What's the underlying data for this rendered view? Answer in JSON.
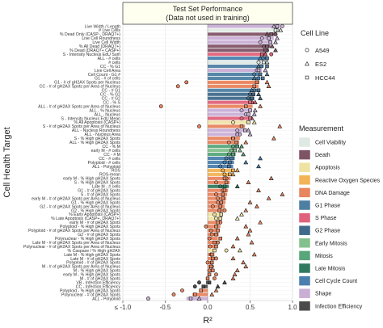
{
  "chart_data": {
    "type": "bar",
    "title": "Test Set Performance",
    "subtitle": "(Data not used in training)",
    "xlabel": "R²",
    "ylabel": "Cell Health Target",
    "xlim": [
      -1.0,
      1.0
    ],
    "xticks": [
      -1.0,
      -0.5,
      0.0,
      0.5,
      1.0
    ],
    "xtick_labels": [
      "≤ -1.0",
      "-0.5",
      "0.0",
      "0.5",
      "1.0"
    ],
    "grid": true,
    "legend_position": "right",
    "categories": [
      "Live Width / Length",
      "# Live Cells",
      "% Dead Only (CASP-, DRAQ7+)",
      "Live Cell Roundness",
      "Live Cell Width",
      "% All Dead (DRAQ7+)",
      "% Dead (DRAQ7+ CASP+)",
      "S - Intensity Nucleus EdU Sum",
      "ALL - # cells",
      "# cells",
      "CC - % G1",
      "Live Cell Area",
      "Cell Count - G1 #",
      "G1 - # of cells",
      "G1 - # of gH2AX Spots per Nucleus",
      "CC - # of gH2AX Spots per Area of Nucleus",
      "CC - # G1",
      "CC - % G2",
      "CC - # G2",
      "CC - % S",
      "ALL - # of gH2AX Spots per Area of Nucleus",
      "ALL - % Nucleus",
      "ALL - Nucleus",
      "S - Intensity Nucleus EdU Mean",
      "% All Apoptosis (CASP+)",
      "S - # of gH2AX Spots per Area of Nucleus",
      "ALL - Nucleus Roundness",
      "ALL - Nucleus Area",
      "S - % High gH2AX Spots",
      "ALL - % High gH2AX Spots",
      "CC - % M",
      "early M - # cells",
      "CC - # M",
      "CC - # cells",
      "Polyploid - # cells",
      "ALL - Polyploid",
      "ROS",
      "ROS-mean",
      "early M - % High gH2AX Spots",
      "S - % High gH2AX Spots",
      "Late M - # cells",
      "G1 - # of gH2AX Spots",
      "S - # of gH2AX Spots",
      "early M - # of gH2AX Spots per Area of Nucleus",
      "G1 - % High gH2AX Spots",
      "G2 - # of gH2AX Spots per Area of Nucleus",
      "G2 - % High gH2AX Spots",
      "% Early Apoptosis (CASP+)",
      "% Late Apoptosis (CASP+, DRAQ7+)",
      "early M - # of gH2AX Spots",
      "Polyploid - % High gH2AX Spots",
      "Polyploid - # of gH2AX Spots per Area of Nucleus",
      "G2 - # of gH2AX Spots",
      "Polynuclear - % High gH2AX Spots",
      "Late M - # of gH2AX Spots per Area of Nucleus",
      "Polynuclear - # of gH2AX Spots per Area of Nucleus",
      "% Caspase / % High gH2AX",
      "Late M - % High gH2AX Spots",
      "Late M - # of gH2AX Spots",
      "Polyploid - # of gH2AX Spots",
      "M - # of gH2AX Spots per Area of Nucleus",
      "M - % High gH2AX Spots",
      "early M - % High gH2AX Spots",
      "M - # of gH2AX Spots",
      "VB - Infection Efficiency",
      "CC - Infection Efficiency",
      "Polyploid - % High gH2AX Spots",
      "Polynuclear - # of gH2AX Spots",
      "ALL - Polyploid"
    ],
    "groups": [
      "shape",
      "viab",
      "death",
      "shape",
      "shape",
      "death",
      "death",
      "s",
      "count",
      "viab",
      "g1",
      "shape",
      "g1",
      "g1",
      "dna",
      "dna",
      "g1",
      "g2",
      "g2",
      "s",
      "dna",
      "shape",
      "shape",
      "s",
      "apop",
      "dna",
      "shape",
      "shape",
      "dna",
      "dna",
      "mit",
      "early",
      "mit",
      "count",
      "count",
      "count",
      "ros",
      "ros",
      "dna",
      "dna",
      "late",
      "dna",
      "dna",
      "dna",
      "dna",
      "dna",
      "dna",
      "apop",
      "apop",
      "dna",
      "dna",
      "dna",
      "dna",
      "dna",
      "dna",
      "dna",
      "apop",
      "dna",
      "dna",
      "dna",
      "dna",
      "dna",
      "dna",
      "dna",
      "infect",
      "infect",
      "dna",
      "dna",
      "shape"
    ],
    "overall_r2": [
      0.85,
      0.83,
      0.8,
      0.78,
      0.76,
      0.74,
      0.72,
      0.7,
      0.69,
      0.68,
      0.66,
      0.64,
      0.63,
      0.62,
      0.61,
      0.6,
      0.58,
      0.56,
      0.55,
      0.54,
      0.53,
      0.52,
      0.5,
      0.48,
      0.46,
      0.44,
      0.42,
      0.4,
      0.38,
      0.37,
      0.36,
      0.34,
      0.33,
      0.32,
      0.31,
      0.3,
      0.29,
      0.28,
      0.27,
      0.26,
      0.25,
      0.24,
      0.23,
      0.22,
      0.21,
      0.2,
      0.19,
      0.18,
      0.17,
      0.16,
      0.15,
      0.14,
      0.13,
      0.12,
      0.11,
      0.1,
      0.09,
      0.08,
      0.07,
      0.06,
      0.05,
      0.04,
      0.03,
      0.02,
      -0.02,
      -0.05,
      -0.1,
      -0.18,
      -0.25
    ],
    "series": [
      {
        "name": "A549",
        "shape": "circle",
        "values": [
          0.88,
          0.82,
          0.8,
          0.64,
          0.62,
          0.66,
          0.7,
          0.75,
          0.65,
          0.6,
          0.63,
          0.58,
          0.55,
          0.6,
          -0.25,
          -0.35,
          0.55,
          0.5,
          0.48,
          0.52,
          -0.55,
          0.4,
          0.45,
          0.4,
          0.3,
          -0.1,
          0.35,
          0.38,
          0.3,
          0.25,
          0.3,
          0.28,
          0.25,
          0.22,
          0.2,
          0.15,
          0.18,
          0.2,
          0.22,
          0.1,
          0.15,
          0.18,
          0.1,
          0.12,
          0.12,
          0.06,
          0.2,
          0.08,
          0.1,
          0.15,
          -0.02,
          0.04,
          0.05,
          0.02,
          0.12,
          0.03,
          0.22,
          0.04,
          0.1,
          0.0,
          0.05,
          0.02,
          0.1,
          0.08,
          -0.1,
          -0.15,
          -0.3,
          -0.4,
          -0.7
        ]
      },
      {
        "name": "ES2",
        "shape": "triangle",
        "values": [
          0.78,
          0.86,
          0.7,
          0.82,
          0.8,
          0.76,
          0.8,
          0.68,
          0.62,
          0.7,
          0.6,
          0.68,
          0.7,
          0.55,
          0.7,
          0.72,
          0.52,
          0.6,
          0.62,
          0.56,
          0.62,
          0.56,
          0.55,
          0.52,
          0.55,
          0.85,
          0.48,
          0.5,
          0.78,
          0.45,
          0.4,
          0.38,
          0.42,
          0.62,
          0.45,
          0.6,
          0.35,
          0.3,
          0.75,
          0.48,
          0.35,
          0.6,
          0.88,
          0.72,
          0.5,
          0.58,
          0.45,
          0.4,
          0.35,
          0.62,
          0.45,
          0.5,
          0.48,
          0.35,
          0.52,
          0.3,
          0.38,
          0.55,
          0.3,
          0.42,
          0.45,
          0.35,
          0.32,
          0.3,
          0.2,
          0.12,
          0.1,
          0.05,
          -0.1
        ]
      },
      {
        "name": "HCC44",
        "shape": "square",
        "values": [
          0.82,
          0.8,
          0.75,
          0.72,
          0.74,
          0.7,
          0.68,
          0.64,
          0.7,
          0.66,
          0.7,
          0.6,
          0.62,
          0.65,
          0.58,
          0.55,
          0.6,
          0.54,
          0.52,
          0.5,
          0.45,
          0.5,
          0.48,
          0.5,
          0.48,
          0.4,
          0.44,
          0.35,
          0.3,
          0.34,
          0.35,
          0.32,
          0.3,
          0.28,
          0.26,
          0.25,
          0.3,
          0.26,
          0.2,
          0.22,
          0.2,
          0.2,
          0.18,
          0.18,
          0.16,
          0.15,
          0.14,
          0.16,
          0.15,
          0.12,
          0.1,
          0.12,
          0.1,
          0.15,
          0.08,
          0.1,
          0.08,
          0.05,
          0.06,
          0.05,
          0.04,
          0.06,
          0.02,
          0.0,
          0.02,
          -0.05,
          -0.08,
          -0.15,
          -0.2
        ]
      }
    ],
    "legend_cell_line": {
      "title": "Cell Line",
      "items": [
        {
          "label": "A549",
          "shape": "circle"
        },
        {
          "label": "ES2",
          "shape": "triangle"
        },
        {
          "label": "HCC44",
          "shape": "square"
        }
      ]
    },
    "legend_measurement": {
      "title": "Measurement",
      "items": [
        {
          "key": "viab",
          "label": "Cell Viability",
          "color": "#dfe9e3"
        },
        {
          "key": "death",
          "label": "Death",
          "color": "#7f5366"
        },
        {
          "key": "apop",
          "label": "Apoptosis",
          "color": "#efe3a4"
        },
        {
          "key": "ros",
          "label": "Reactive Oxygen Species",
          "color": "#f2b456"
        },
        {
          "key": "dna",
          "label": "DNA Damage",
          "color": "#e8845e"
        },
        {
          "key": "g1",
          "label": "G1 Phase",
          "color": "#4d7fa3"
        },
        {
          "key": "s",
          "label": "S Phase",
          "color": "#e0627a"
        },
        {
          "key": "g2",
          "label": "G2 Phase",
          "color": "#3f6a8c"
        },
        {
          "key": "early",
          "label": "Early Mitosis",
          "color": "#83c08e"
        },
        {
          "key": "mit",
          "label": "Mitosis",
          "color": "#57a77a"
        },
        {
          "key": "late",
          "label": "Late Mitosis",
          "color": "#2f7a5f"
        },
        {
          "key": "count",
          "label": "Cell Cycle Count",
          "color": "#4a7fae"
        },
        {
          "key": "shape",
          "label": "Shape",
          "color": "#c9aed6"
        },
        {
          "key": "infect",
          "label": "Infection Efficiency",
          "color": "#4a4a4a"
        }
      ]
    }
  }
}
